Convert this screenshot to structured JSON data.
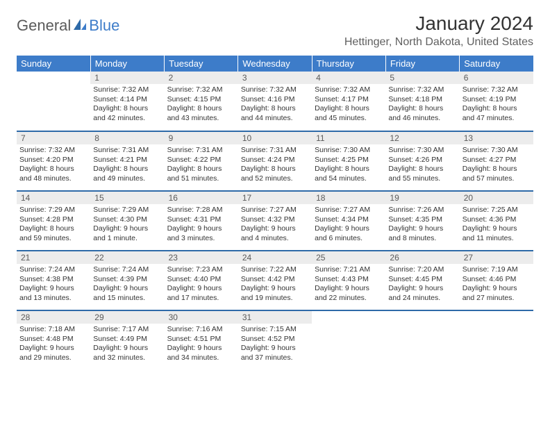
{
  "brand": {
    "part1": "General",
    "part2": "Blue"
  },
  "title": "January 2024",
  "location": "Hettinger, North Dakota, United States",
  "colors": {
    "header_bg": "#3d7cc9",
    "row_border": "#2e6aa8",
    "daynum_bg": "#ececec",
    "text": "#333333",
    "logo_blue": "#3d7cc9",
    "logo_gray": "#5a5a5a"
  },
  "day_headers": [
    "Sunday",
    "Monday",
    "Tuesday",
    "Wednesday",
    "Thursday",
    "Friday",
    "Saturday"
  ],
  "start_offset": 1,
  "days": [
    {
      "n": 1,
      "sunrise": "7:32 AM",
      "sunset": "4:14 PM",
      "daylight": "8 hours and 42 minutes."
    },
    {
      "n": 2,
      "sunrise": "7:32 AM",
      "sunset": "4:15 PM",
      "daylight": "8 hours and 43 minutes."
    },
    {
      "n": 3,
      "sunrise": "7:32 AM",
      "sunset": "4:16 PM",
      "daylight": "8 hours and 44 minutes."
    },
    {
      "n": 4,
      "sunrise": "7:32 AM",
      "sunset": "4:17 PM",
      "daylight": "8 hours and 45 minutes."
    },
    {
      "n": 5,
      "sunrise": "7:32 AM",
      "sunset": "4:18 PM",
      "daylight": "8 hours and 46 minutes."
    },
    {
      "n": 6,
      "sunrise": "7:32 AM",
      "sunset": "4:19 PM",
      "daylight": "8 hours and 47 minutes."
    },
    {
      "n": 7,
      "sunrise": "7:32 AM",
      "sunset": "4:20 PM",
      "daylight": "8 hours and 48 minutes."
    },
    {
      "n": 8,
      "sunrise": "7:31 AM",
      "sunset": "4:21 PM",
      "daylight": "8 hours and 49 minutes."
    },
    {
      "n": 9,
      "sunrise": "7:31 AM",
      "sunset": "4:22 PM",
      "daylight": "8 hours and 51 minutes."
    },
    {
      "n": 10,
      "sunrise": "7:31 AM",
      "sunset": "4:24 PM",
      "daylight": "8 hours and 52 minutes."
    },
    {
      "n": 11,
      "sunrise": "7:30 AM",
      "sunset": "4:25 PM",
      "daylight": "8 hours and 54 minutes."
    },
    {
      "n": 12,
      "sunrise": "7:30 AM",
      "sunset": "4:26 PM",
      "daylight": "8 hours and 55 minutes."
    },
    {
      "n": 13,
      "sunrise": "7:30 AM",
      "sunset": "4:27 PM",
      "daylight": "8 hours and 57 minutes."
    },
    {
      "n": 14,
      "sunrise": "7:29 AM",
      "sunset": "4:28 PM",
      "daylight": "8 hours and 59 minutes."
    },
    {
      "n": 15,
      "sunrise": "7:29 AM",
      "sunset": "4:30 PM",
      "daylight": "9 hours and 1 minute."
    },
    {
      "n": 16,
      "sunrise": "7:28 AM",
      "sunset": "4:31 PM",
      "daylight": "9 hours and 3 minutes."
    },
    {
      "n": 17,
      "sunrise": "7:27 AM",
      "sunset": "4:32 PM",
      "daylight": "9 hours and 4 minutes."
    },
    {
      "n": 18,
      "sunrise": "7:27 AM",
      "sunset": "4:34 PM",
      "daylight": "9 hours and 6 minutes."
    },
    {
      "n": 19,
      "sunrise": "7:26 AM",
      "sunset": "4:35 PM",
      "daylight": "9 hours and 8 minutes."
    },
    {
      "n": 20,
      "sunrise": "7:25 AM",
      "sunset": "4:36 PM",
      "daylight": "9 hours and 11 minutes."
    },
    {
      "n": 21,
      "sunrise": "7:24 AM",
      "sunset": "4:38 PM",
      "daylight": "9 hours and 13 minutes."
    },
    {
      "n": 22,
      "sunrise": "7:24 AM",
      "sunset": "4:39 PM",
      "daylight": "9 hours and 15 minutes."
    },
    {
      "n": 23,
      "sunrise": "7:23 AM",
      "sunset": "4:40 PM",
      "daylight": "9 hours and 17 minutes."
    },
    {
      "n": 24,
      "sunrise": "7:22 AM",
      "sunset": "4:42 PM",
      "daylight": "9 hours and 19 minutes."
    },
    {
      "n": 25,
      "sunrise": "7:21 AM",
      "sunset": "4:43 PM",
      "daylight": "9 hours and 22 minutes."
    },
    {
      "n": 26,
      "sunrise": "7:20 AM",
      "sunset": "4:45 PM",
      "daylight": "9 hours and 24 minutes."
    },
    {
      "n": 27,
      "sunrise": "7:19 AM",
      "sunset": "4:46 PM",
      "daylight": "9 hours and 27 minutes."
    },
    {
      "n": 28,
      "sunrise": "7:18 AM",
      "sunset": "4:48 PM",
      "daylight": "9 hours and 29 minutes."
    },
    {
      "n": 29,
      "sunrise": "7:17 AM",
      "sunset": "4:49 PM",
      "daylight": "9 hours and 32 minutes."
    },
    {
      "n": 30,
      "sunrise": "7:16 AM",
      "sunset": "4:51 PM",
      "daylight": "9 hours and 34 minutes."
    },
    {
      "n": 31,
      "sunrise": "7:15 AM",
      "sunset": "4:52 PM",
      "daylight": "9 hours and 37 minutes."
    }
  ],
  "labels": {
    "sunrise": "Sunrise:",
    "sunset": "Sunset:",
    "daylight": "Daylight:"
  }
}
